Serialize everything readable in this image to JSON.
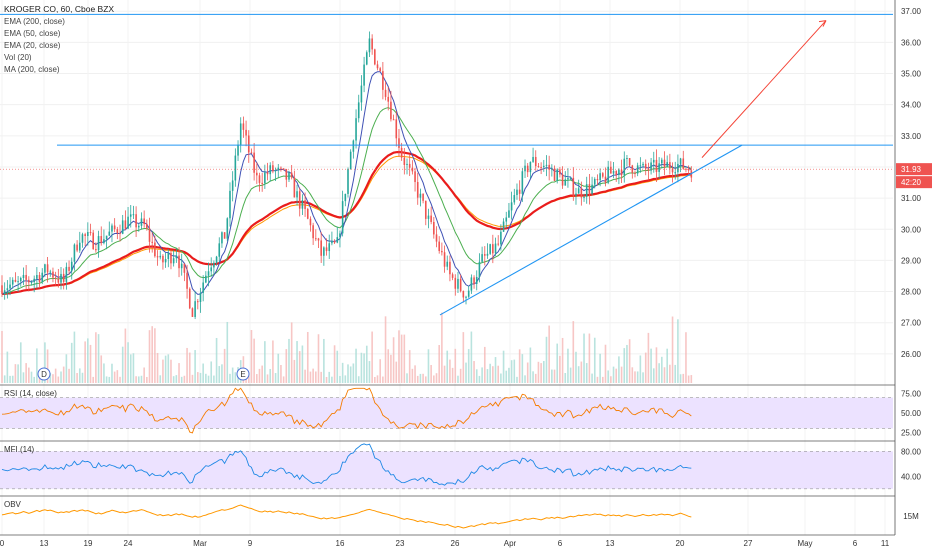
{
  "chart_data": {
    "type": "candlestick",
    "symbol_header": "KROGER CO, 60, Cboe BZX",
    "indicators": [
      "EMA (200, close)",
      "EMA (50, close)",
      "EMA (20, close)",
      "Vol (20)",
      "MA (200, close)"
    ],
    "price_axis": {
      "ticks": [
        "37.00",
        "36.00",
        "35.00",
        "34.00",
        "33.00",
        "32.00",
        "31.00",
        "30.00",
        "29.00",
        "28.00",
        "27.00",
        "26.00"
      ],
      "range": [
        25.0,
        37.2
      ]
    },
    "price_badges": [
      {
        "text": "31.93",
        "color": "#ef5350"
      },
      {
        "text": "42:20",
        "color": "#ef5350"
      }
    ],
    "x_ticks": [
      "0",
      "13",
      "19",
      "24",
      "Mar",
      "9",
      "16",
      "23",
      "26",
      "Apr",
      "6",
      "13",
      "20",
      "27",
      "May",
      "6",
      "11"
    ],
    "event_markers": [
      "D",
      "E"
    ],
    "approx_series": {
      "close_daily": [
        28.2,
        28.4,
        28.7,
        28.3,
        29.8,
        29.6,
        29.9,
        30.3,
        30.1,
        28.9,
        29.3,
        27.4,
        28.8,
        29.8,
        33.4,
        31.6,
        31.9,
        31.6,
        30.5,
        29.2,
        29.5,
        33.1,
        36.0,
        34.5,
        32.4,
        31.2,
        29.8,
        28.5,
        27.9,
        29.0,
        29.5,
        31.0,
        32.2,
        32.0,
        31.6,
        31.2,
        31.4,
        31.8,
        32.1,
        31.9,
        32.0,
        32.1,
        31.93
      ],
      "horizontal_resistance": 32.7,
      "top_line": 36.9
    },
    "panels": [
      {
        "name": "RSI (14, close)",
        "ticks": [
          "75.00",
          "50.00",
          "25.00"
        ],
        "range": [
          15,
          85
        ],
        "band": [
          30,
          70
        ]
      },
      {
        "name": "MFI (14)",
        "ticks": [
          "80.00",
          "40.00"
        ],
        "range": [
          10,
          95
        ],
        "band": [
          20,
          80
        ]
      },
      {
        "name": "OBV",
        "ticks": [
          "15M"
        ]
      }
    ],
    "colors": {
      "up": "#26a69a",
      "down": "#ef5350",
      "ema200": "#e91c1c",
      "ema50": "#4caf50",
      "ema20": "#3f51b5",
      "ma200": "#ff9800",
      "trend": "#2196f3",
      "arrow": "#f44336",
      "rsi": "#f57c00",
      "mfi": "#1e88e5",
      "obv": "#ff9800",
      "band": "#ece2ff"
    }
  }
}
